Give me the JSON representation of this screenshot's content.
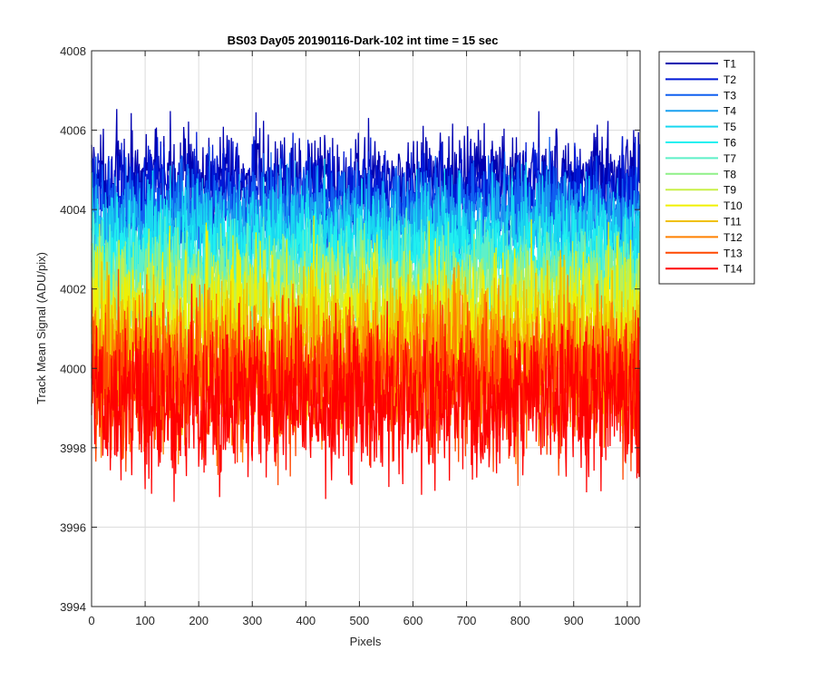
{
  "chart_data": {
    "type": "line",
    "title": "BS03 Day05 20190116-Dark-102 int time = 15 sec",
    "xlabel": "Pixels",
    "ylabel": "Track Mean Signal (ADU/pix)",
    "xlim": [
      0,
      1024
    ],
    "ylim": [
      3994,
      4008
    ],
    "x_ticks": [
      0,
      100,
      200,
      300,
      400,
      500,
      600,
      700,
      800,
      900,
      1000
    ],
    "y_ticks": [
      3994,
      3996,
      3998,
      4000,
      4002,
      4004,
      4006,
      4008
    ],
    "grid": true,
    "legend_position": "outside-top-right",
    "series": [
      {
        "name": "T1",
        "color": "#0000b0",
        "mean_approx": 4004.8,
        "min_approx": 4002.8,
        "max_approx": 4007.2
      },
      {
        "name": "T2",
        "color": "#0019d6",
        "mean_approx": 4004.4,
        "min_approx": 4002.4,
        "max_approx": 4006.9
      },
      {
        "name": "T3",
        "color": "#1060f0",
        "mean_approx": 4004.0,
        "min_approx": 4002.0,
        "max_approx": 4006.5
      },
      {
        "name": "T4",
        "color": "#1aa0f0",
        "mean_approx": 4003.6,
        "min_approx": 4001.6,
        "max_approx": 4006.1
      },
      {
        "name": "T5",
        "color": "#18d8f0",
        "mean_approx": 4003.2,
        "min_approx": 4001.2,
        "max_approx": 4006.5
      },
      {
        "name": "T6",
        "color": "#20f0f0",
        "mean_approx": 4002.8,
        "min_approx": 4000.8,
        "max_approx": 4005.6
      },
      {
        "name": "T7",
        "color": "#5ef0c8",
        "mean_approx": 4002.4,
        "min_approx": 4000.4,
        "max_approx": 4005.2
      },
      {
        "name": "T8",
        "color": "#8ff088",
        "mean_approx": 4002.0,
        "min_approx": 4000.0,
        "max_approx": 4004.8
      },
      {
        "name": "T9",
        "color": "#c8f048",
        "mean_approx": 4001.6,
        "min_approx": 3999.6,
        "max_approx": 4004.4
      },
      {
        "name": "T10",
        "color": "#f0f000",
        "mean_approx": 4001.0,
        "min_approx": 3996.5,
        "max_approx": 4004.0
      },
      {
        "name": "T11",
        "color": "#f0c000",
        "mean_approx": 4000.5,
        "min_approx": 3996.8,
        "max_approx": 4003.6
      },
      {
        "name": "T12",
        "color": "#ff8000",
        "mean_approx": 4000.0,
        "min_approx": 3996.2,
        "max_approx": 4003.2
      },
      {
        "name": "T13",
        "color": "#ff4800",
        "mean_approx": 3999.6,
        "min_approx": 3996.0,
        "max_approx": 4002.8
      },
      {
        "name": "T14",
        "color": "#ff0000",
        "mean_approx": 3999.2,
        "min_approx": 3995.0,
        "max_approx": 4002.5
      }
    ]
  }
}
